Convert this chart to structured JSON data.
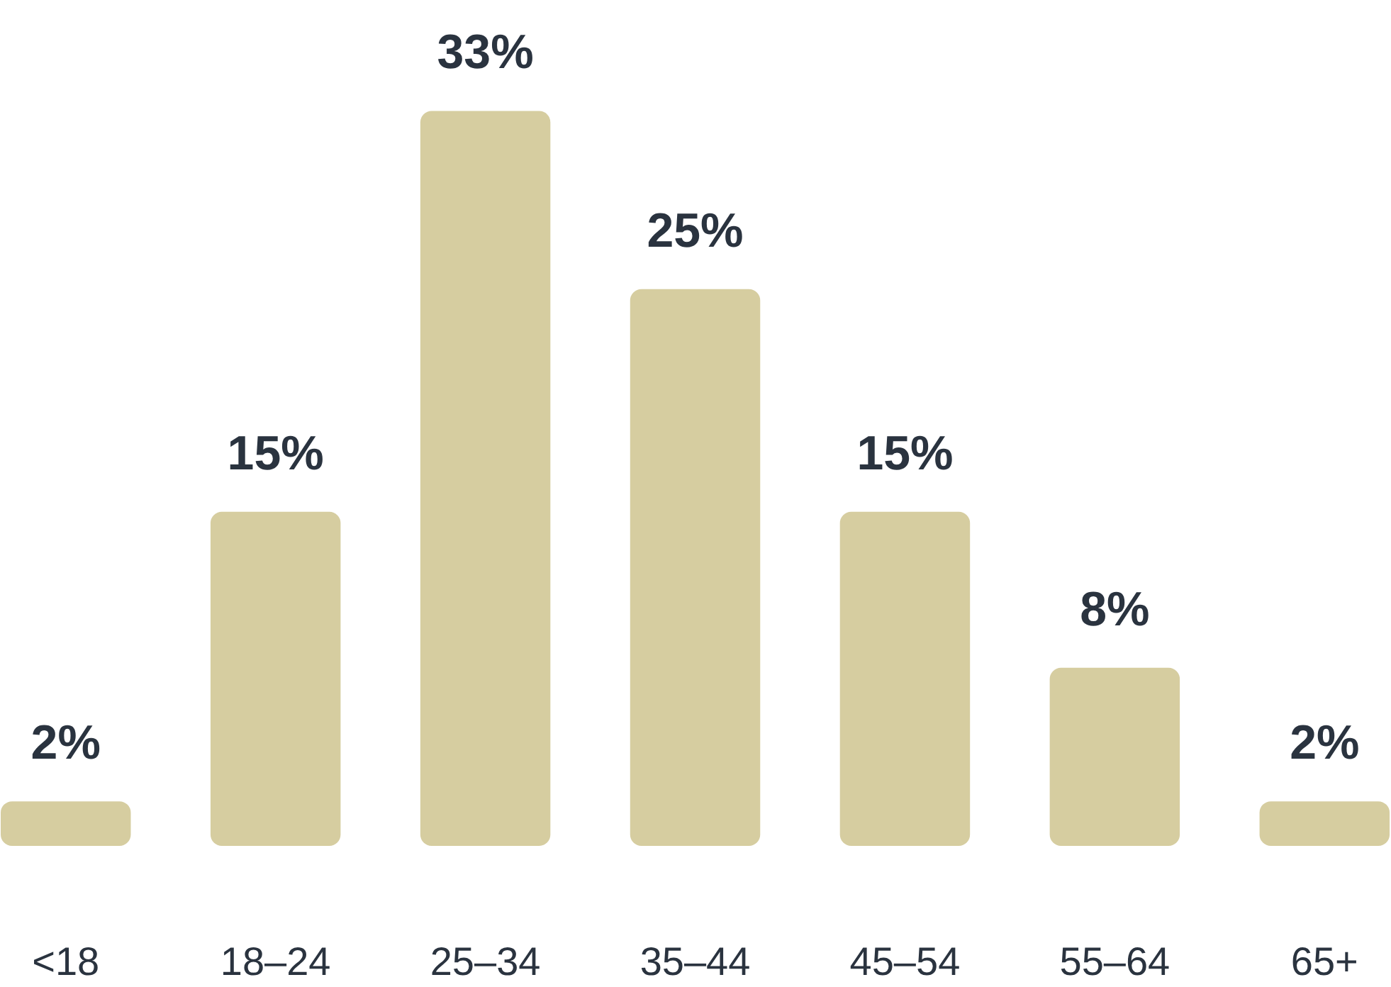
{
  "chart_data": {
    "type": "bar",
    "categories": [
      "<18",
      "18–24",
      "25–34",
      "35–44",
      "45–54",
      "55–64",
      "65+"
    ],
    "values": [
      2,
      15,
      33,
      25,
      15,
      8,
      2
    ],
    "value_labels": [
      "2%",
      "15%",
      "33%",
      "25%",
      "15%",
      "8%",
      "2%"
    ],
    "color": "#d6cda0",
    "grid": false
  }
}
